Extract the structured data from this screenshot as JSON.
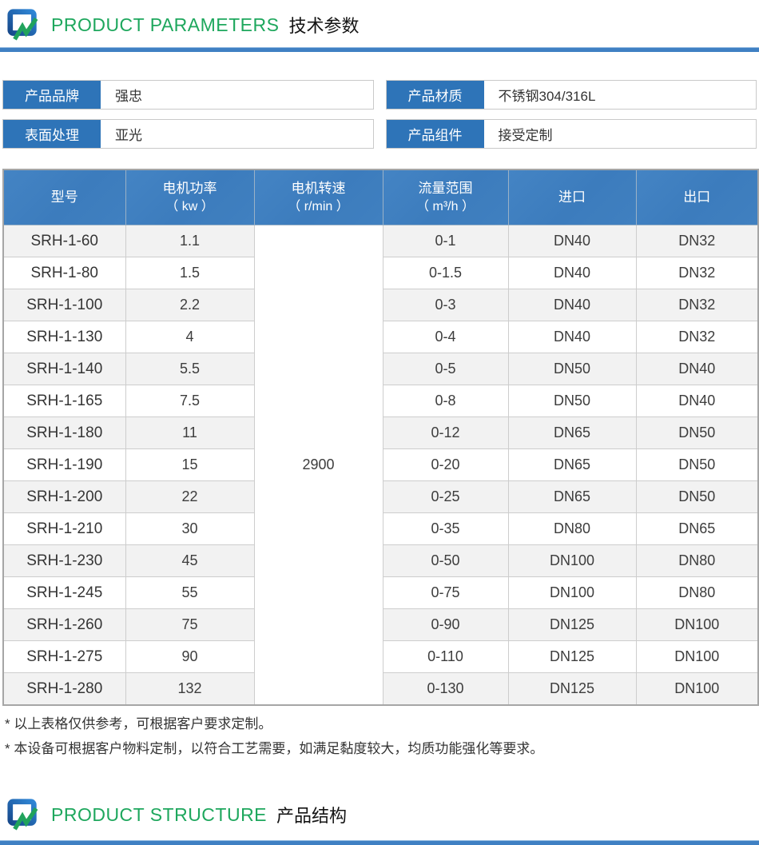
{
  "colors": {
    "accent_green": "#1ea75d",
    "label_blue": "#2e74b8",
    "table_header_blue": "#3e7ebf",
    "divider_blue": "#3f80c3",
    "stripe_gray": "#f2f2f2"
  },
  "section1": {
    "title_en": "PRODUCT PARAMETERS",
    "title_zh": "技术参数"
  },
  "info_boxes": [
    {
      "label": "产品品牌",
      "value": "强忠"
    },
    {
      "label": "产品材质",
      "value": "不锈钢304/316L"
    },
    {
      "label": "表面处理",
      "value": "亚光"
    },
    {
      "label": "产品组件",
      "value": "接受定制"
    }
  ],
  "table": {
    "headers": [
      {
        "line1": "型号",
        "line2": ""
      },
      {
        "line1": "电机功率",
        "line2": "（ kw ）"
      },
      {
        "line1": "电机转速",
        "line2": "（ r/min ）"
      },
      {
        "line1": "流量范围",
        "line2": "（ m³/h ）"
      },
      {
        "line1": "进口",
        "line2": ""
      },
      {
        "line1": "出口",
        "line2": ""
      }
    ],
    "speed_value": "2900",
    "rows": [
      {
        "model": "SRH-1-60",
        "power": "1.1",
        "flow": "0-1",
        "inlet": "DN40",
        "outlet": "DN32"
      },
      {
        "model": "SRH-1-80",
        "power": "1.5",
        "flow": "0-1.5",
        "inlet": "DN40",
        "outlet": "DN32"
      },
      {
        "model": "SRH-1-100",
        "power": "2.2",
        "flow": "0-3",
        "inlet": "DN40",
        "outlet": "DN32"
      },
      {
        "model": "SRH-1-130",
        "power": "4",
        "flow": "0-4",
        "inlet": "DN40",
        "outlet": "DN32"
      },
      {
        "model": "SRH-1-140",
        "power": "5.5",
        "flow": "0-5",
        "inlet": "DN50",
        "outlet": "DN40"
      },
      {
        "model": "SRH-1-165",
        "power": "7.5",
        "flow": "0-8",
        "inlet": "DN50",
        "outlet": "DN40"
      },
      {
        "model": "SRH-1-180",
        "power": "11",
        "flow": "0-12",
        "inlet": "DN65",
        "outlet": "DN50"
      },
      {
        "model": "SRH-1-190",
        "power": "15",
        "flow": "0-20",
        "inlet": "DN65",
        "outlet": "DN50"
      },
      {
        "model": "SRH-1-200",
        "power": "22",
        "flow": "0-25",
        "inlet": "DN65",
        "outlet": "DN50"
      },
      {
        "model": "SRH-1-210",
        "power": "30",
        "flow": "0-35",
        "inlet": "DN80",
        "outlet": "DN65"
      },
      {
        "model": "SRH-1-230",
        "power": "45",
        "flow": "0-50",
        "inlet": "DN100",
        "outlet": "DN80"
      },
      {
        "model": "SRH-1-245",
        "power": "55",
        "flow": "0-75",
        "inlet": "DN100",
        "outlet": "DN80"
      },
      {
        "model": "SRH-1-260",
        "power": "75",
        "flow": "0-90",
        "inlet": "DN125",
        "outlet": "DN100"
      },
      {
        "model": "SRH-1-275",
        "power": "90",
        "flow": "0-110",
        "inlet": "DN125",
        "outlet": "DN100"
      },
      {
        "model": "SRH-1-280",
        "power": "132",
        "flow": "0-130",
        "inlet": "DN125",
        "outlet": "DN100"
      }
    ]
  },
  "notes": [
    "* 以上表格仅供参考，可根据客户要求定制。",
    "* 本设备可根据客户物料定制，以符合工艺需要，如满足黏度较大，均质功能强化等要求。"
  ],
  "section2": {
    "title_en": "PRODUCT STRUCTURE",
    "title_zh": "产品结构"
  }
}
